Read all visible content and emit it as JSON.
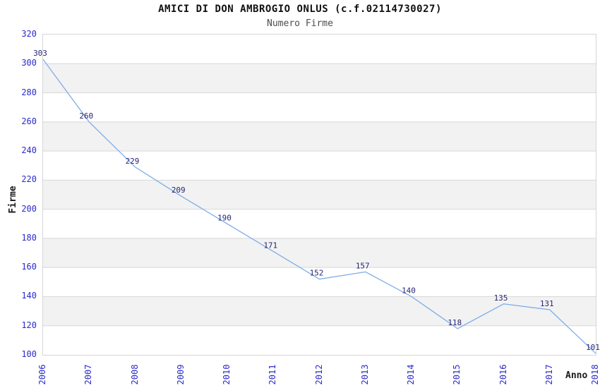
{
  "chart_data": {
    "type": "line",
    "title": "AMICI DI DON AMBROGIO ONLUS (c.f.02114730027)",
    "subtitle": "Numero Firme",
    "xlabel": "Anno",
    "ylabel": "Firme",
    "categories": [
      "2006",
      "2007",
      "2008",
      "2009",
      "2010",
      "2011",
      "2012",
      "2013",
      "2014",
      "2015",
      "2016",
      "2017",
      "2018"
    ],
    "values": [
      303,
      260,
      229,
      209,
      190,
      171,
      152,
      157,
      140,
      118,
      135,
      131,
      101
    ],
    "series_name": "Numero Firme",
    "data_labels_visible": true,
    "ylim": [
      100,
      320
    ],
    "y_ticks": [
      320,
      300,
      280,
      260,
      240,
      220,
      200,
      180,
      160,
      140,
      120,
      100
    ],
    "grid": "horizontal-bands-alternating",
    "legend": "none",
    "markers": "none"
  },
  "colors": {
    "line": "#7fade8",
    "axis_tick_label": "#2a2acc",
    "data_label": "#262673",
    "band": "#f2f2f2",
    "band_alt": "#ffffff",
    "gridline": "#d8d8d8",
    "plot_border": "#d6d6d6",
    "title": "#111111",
    "subtitle": "#4d4d4d",
    "axis_title": "#1a1a1a",
    "background": "#ffffff"
  }
}
